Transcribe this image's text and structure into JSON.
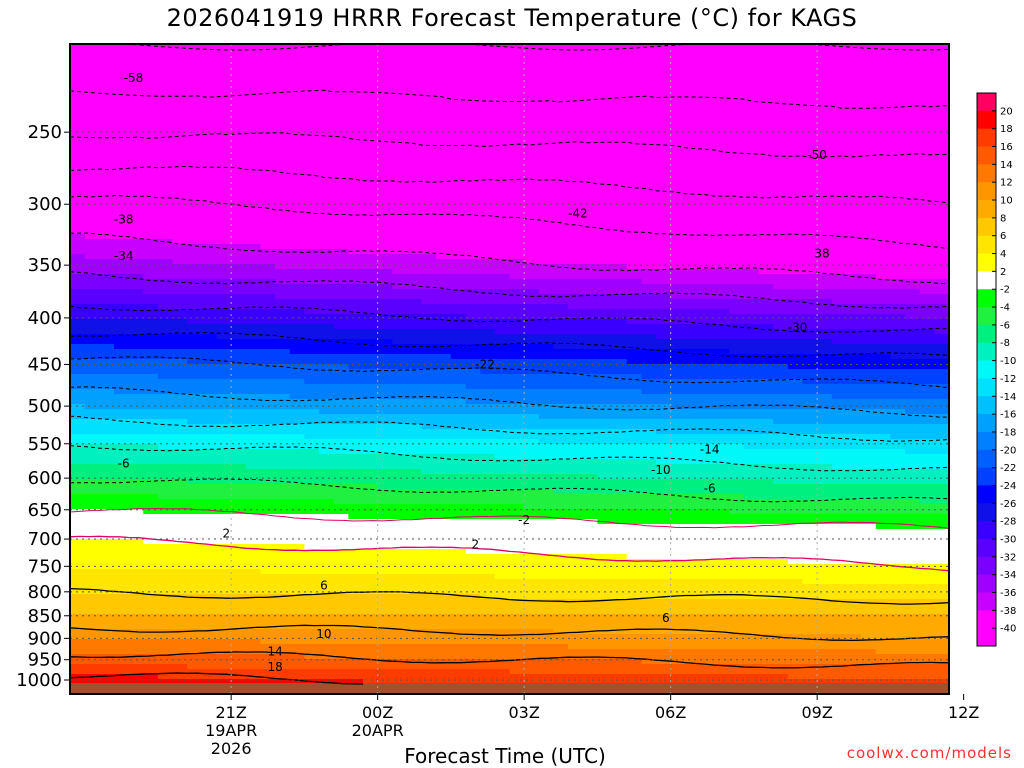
{
  "page": {
    "title": "2026041919 HRRR Forecast Temperature (°C) for KAGS",
    "credit": "coolwx.com/models"
  },
  "chart_data": {
    "type": "heatmap",
    "title": "2026041919 HRRR Forecast Temperature (°C) for KAGS",
    "xlabel": "Forecast Time (UTC)",
    "ylabel": "",
    "x_range_hours": [
      -3.3,
      14.7
    ],
    "y_range_hpa": [
      1000,
      200
    ],
    "y_ticks": [
      250,
      300,
      350,
      400,
      450,
      500,
      550,
      600,
      650,
      700,
      750,
      800,
      850,
      900,
      950,
      1000
    ],
    "x_ticks": [
      {
        "hour": 0,
        "lines": [
          "21Z",
          "19APR",
          "2026"
        ]
      },
      {
        "hour": 3,
        "lines": [
          "00Z",
          "20APR"
        ]
      },
      {
        "hour": 6,
        "lines": [
          "03Z"
        ]
      },
      {
        "hour": 9,
        "lines": [
          "06Z"
        ]
      },
      {
        "hour": 12,
        "lines": [
          "09Z"
        ]
      },
      {
        "hour": 15,
        "lines": [
          "12Z"
        ]
      }
    ],
    "colorbar": {
      "labels": [
        "20",
        "18",
        "16",
        "14",
        "12",
        "10",
        "8",
        "6",
        "4",
        "2",
        "-2",
        "-4",
        "-6",
        "-8",
        "-10",
        "-12",
        "-14",
        "-16",
        "-18",
        "-20",
        "-22",
        "-24",
        "-26",
        "-28",
        "-30",
        "-32",
        "-34",
        "-36",
        "-38",
        "-40"
      ],
      "colors": [
        "#ff0060",
        "#ff0000",
        "#ff3c00",
        "#ff5a00",
        "#ff7800",
        "#ff9600",
        "#ffaa00",
        "#ffc800",
        "#ffe600",
        "#ffff00",
        "#ffffff",
        "#00ff00",
        "#20f040",
        "#00f080",
        "#00f0c0",
        "#00f8f8",
        "#00e0ff",
        "#00c0ff",
        "#00a0ff",
        "#0080ff",
        "#0060ff",
        "#0040ff",
        "#0000ff",
        "#1010e8",
        "#3a00ff",
        "#5a00ff",
        "#7a00ff",
        "#a000ff",
        "#c800ff",
        "#ff00ff",
        "#ff00ff"
      ]
    },
    "temperature_profile": {
      "pressure_hpa": [
        1000,
        950,
        900,
        850,
        800,
        750,
        700,
        650,
        600,
        550,
        500,
        450,
        400,
        350,
        300,
        250,
        200
      ],
      "temp_c_start": [
        19,
        15,
        12,
        8,
        6,
        4,
        2,
        -2,
        -6,
        -10,
        -16,
        -21,
        -28,
        -35,
        -41,
        -50,
        -58
      ],
      "temp_c_end": [
        16,
        13,
        10,
        8,
        5,
        2,
        0,
        -5,
        -9,
        -13,
        -19,
        -25,
        -32,
        -40,
        -46,
        -52,
        -58
      ]
    },
    "contour_labels": [
      {
        "text": "-58",
        "hour": -2.0,
        "hpa": 218
      },
      {
        "text": "-50",
        "hour": 12.0,
        "hpa": 265
      },
      {
        "text": "-42",
        "hour": 7.1,
        "hpa": 307
      },
      {
        "text": "-38",
        "hour": -2.2,
        "hpa": 312
      },
      {
        "text": "-34",
        "hour": -2.2,
        "hpa": 342
      },
      {
        "text": "38",
        "hour": 12.1,
        "hpa": 340
      },
      {
        "text": "-30",
        "hour": 11.6,
        "hpa": 410
      },
      {
        "text": "-22",
        "hour": 5.2,
        "hpa": 450
      },
      {
        "text": "-14",
        "hour": 9.8,
        "hpa": 558
      },
      {
        "text": "-10",
        "hour": 8.8,
        "hpa": 588
      },
      {
        "text": "-6",
        "hour": -2.2,
        "hpa": 578
      },
      {
        "text": "-6",
        "hour": 9.8,
        "hpa": 616
      },
      {
        "text": "-2",
        "hour": 6.0,
        "hpa": 667
      },
      {
        "text": "2",
        "hour": -0.1,
        "hpa": 690
      },
      {
        "text": "2",
        "hour": 5.0,
        "hpa": 710
      },
      {
        "text": "6",
        "hour": 1.9,
        "hpa": 787
      },
      {
        "text": "6",
        "hour": 8.9,
        "hpa": 855
      },
      {
        "text": "10",
        "hour": 1.9,
        "hpa": 890
      },
      {
        "text": "14",
        "hour": 0.9,
        "hpa": 930
      },
      {
        "text": "18",
        "hour": 0.9,
        "hpa": 968
      }
    ]
  }
}
